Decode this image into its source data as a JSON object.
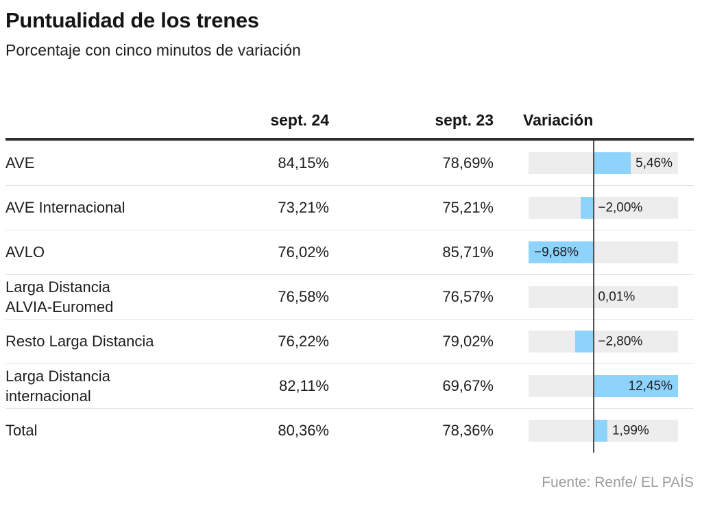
{
  "header": {
    "title": "Puntualidad de los trenes",
    "subtitle": "Porcentaje con cinco minutos de variación"
  },
  "table": {
    "columns": [
      "sept. 24",
      "sept. 23",
      "Variación"
    ],
    "rows": [
      {
        "label": "AVE",
        "sept24": "84,15%",
        "sept23": "78,69%",
        "variation_label": "5,46%"
      },
      {
        "label": "AVE Internacional",
        "sept24": "73,21%",
        "sept23": "75,21%",
        "variation_label": "−2,00%"
      },
      {
        "label": "AVLO",
        "sept24": "76,02%",
        "sept23": "85,71%",
        "variation_label": "−9,68%"
      },
      {
        "label": "Larga Distancia\nALVIA-Euromed",
        "sept24": "76,58%",
        "sept23": "76,57%",
        "variation_label": "0,01%"
      },
      {
        "label": "Resto Larga Distancia",
        "sept24": "76,22%",
        "sept23": "79,02%",
        "variation_label": "−2,80%"
      },
      {
        "label": "Larga Distancia\ninternacional",
        "sept24": "82,11%",
        "sept23": "69,67%",
        "variation_label": "12,45%"
      },
      {
        "label": "Total",
        "sept24": "80,36%",
        "sept23": "78,36%",
        "variation_label": "1,99%"
      }
    ]
  },
  "chart_data": {
    "type": "bar",
    "orientation": "horizontal-diverging",
    "title": "Puntualidad de los trenes",
    "subtitle": "Porcentaje con cinco minutos de variación",
    "categories": [
      "AVE",
      "AVE Internacional",
      "AVLO",
      "Larga Distancia ALVIA-Euromed",
      "Resto Larga Distancia",
      "Larga Distancia internacional",
      "Total"
    ],
    "series": [
      {
        "name": "sept. 24",
        "values": [
          84.15,
          73.21,
          76.02,
          76.58,
          76.22,
          82.11,
          80.36
        ]
      },
      {
        "name": "sept. 23",
        "values": [
          78.69,
          75.21,
          85.71,
          76.57,
          79.02,
          69.67,
          78.36
        ]
      },
      {
        "name": "Variación",
        "values": [
          5.46,
          -2.0,
          -9.68,
          0.01,
          -2.8,
          12.45,
          1.99
        ]
      }
    ],
    "bar_series": "Variación",
    "xlim": [
      -9.68,
      12.45
    ],
    "zero_line": true,
    "grid": false,
    "legend": "none",
    "label_placements": [
      "after-bar",
      "after-zero",
      "inside-left",
      "after-zero",
      "after-zero",
      "inside-right",
      "after-bar"
    ]
  },
  "footer": {
    "source": "Fuente: Renfe/ EL PAÍS"
  },
  "colors": {
    "bar_fill": "#8ed3fb",
    "track_fill": "#ededed",
    "zero_line": "#4f4f4f",
    "header_rule": "#2e2e2e",
    "separator": "#e3e3e3",
    "text": "#1d1d1d",
    "source_text": "#9c9c9c"
  }
}
